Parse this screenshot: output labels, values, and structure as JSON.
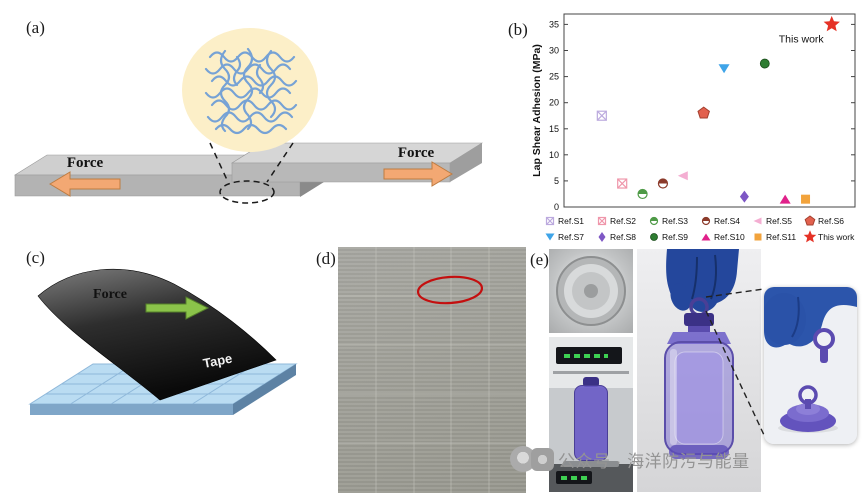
{
  "panels": {
    "a": {
      "label": "(a)",
      "force_left": "Force",
      "force_right": "Force"
    },
    "b": {
      "label": "(b)"
    },
    "c": {
      "label": "(c)",
      "force": "Force",
      "tape": "Tape"
    },
    "d": {
      "label": "(d)"
    },
    "e": {
      "label": "(e)"
    }
  },
  "watermark": {
    "text": "公众号 · 海洋防污与能量"
  },
  "chart_data": {
    "type": "scatter",
    "title": "",
    "xlabel": "",
    "ylabel": "Lap Shear Adhesion (MPa)",
    "ylim": [
      0,
      37
    ],
    "yticks": [
      0,
      5,
      10,
      15,
      20,
      25,
      30,
      35
    ],
    "grid": false,
    "legend_position": "bottom",
    "annotation": "This work",
    "points": [
      {
        "label": "Ref.S1",
        "x": 0.13,
        "y": 17.5,
        "marker": "square-cross",
        "color": "#bcaade"
      },
      {
        "label": "Ref.S2",
        "x": 0.2,
        "y": 4.5,
        "marker": "square-cross",
        "color": "#ef97ab"
      },
      {
        "label": "Ref.S3",
        "x": 0.27,
        "y": 2.5,
        "marker": "circle-half",
        "color": "#4e9a46"
      },
      {
        "label": "Ref.S4",
        "x": 0.34,
        "y": 4.5,
        "marker": "circle-half",
        "color": "#8b3a2a"
      },
      {
        "label": "Ref.S5",
        "x": 0.41,
        "y": 6,
        "marker": "triangle-left",
        "color": "#f4aed2"
      },
      {
        "label": "Ref.S6",
        "x": 0.48,
        "y": 18,
        "marker": "pentagon",
        "color": "#e2614e"
      },
      {
        "label": "Ref.S7",
        "x": 0.55,
        "y": 26.5,
        "marker": "triangle-down",
        "color": "#3fa4e8"
      },
      {
        "label": "Ref.S8",
        "x": 0.62,
        "y": 2,
        "marker": "diamond",
        "color": "#7e57c5"
      },
      {
        "label": "Ref.S9",
        "x": 0.69,
        "y": 27.5,
        "marker": "circle",
        "color": "#2e7d32"
      },
      {
        "label": "Ref.S10",
        "x": 0.76,
        "y": 1.5,
        "marker": "triangle-up",
        "color": "#e0218a"
      },
      {
        "label": "Ref.S11",
        "x": 0.83,
        "y": 1.5,
        "marker": "square",
        "color": "#f2a33c"
      },
      {
        "label": "This work",
        "x": 0.92,
        "y": 35,
        "marker": "star",
        "color": "#e53226"
      }
    ]
  }
}
